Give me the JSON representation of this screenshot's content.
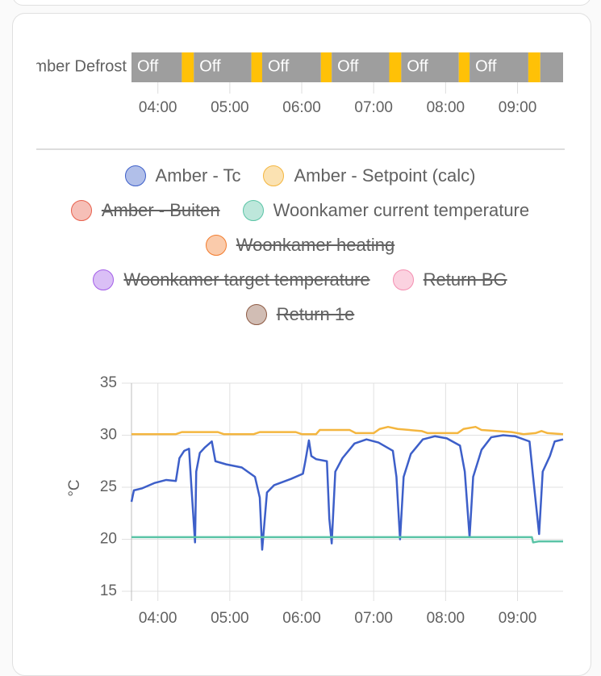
{
  "chart_data": [
    {
      "type": "timeline",
      "label": "Amber Defrost",
      "xlim": [
        218,
        578
      ],
      "xticks": [
        {
          "value": 240,
          "label": "04:00"
        },
        {
          "value": 300,
          "label": "05:00"
        },
        {
          "value": 360,
          "label": "06:00"
        },
        {
          "value": 420,
          "label": "07:00"
        },
        {
          "value": 480,
          "label": "08:00"
        },
        {
          "value": 540,
          "label": "09:00"
        }
      ],
      "segments": [
        {
          "start": 218,
          "end": 260,
          "state": "Off",
          "color": "#9e9e9e"
        },
        {
          "start": 260,
          "end": 270,
          "state": null,
          "color": "#ffc107"
        },
        {
          "start": 270,
          "end": 318,
          "state": "Off",
          "color": "#9e9e9e"
        },
        {
          "start": 318,
          "end": 327,
          "state": null,
          "color": "#ffc107"
        },
        {
          "start": 327,
          "end": 376,
          "state": "Off",
          "color": "#9e9e9e"
        },
        {
          "start": 376,
          "end": 385,
          "state": null,
          "color": "#ffc107"
        },
        {
          "start": 385,
          "end": 433,
          "state": "Off",
          "color": "#9e9e9e"
        },
        {
          "start": 433,
          "end": 443,
          "state": null,
          "color": "#ffc107"
        },
        {
          "start": 443,
          "end": 491,
          "state": "Off",
          "color": "#9e9e9e"
        },
        {
          "start": 491,
          "end": 500,
          "state": null,
          "color": "#ffc107"
        },
        {
          "start": 500,
          "end": 549,
          "state": "Off",
          "color": "#9e9e9e"
        },
        {
          "start": 549,
          "end": 559,
          "state": null,
          "color": "#ffc107"
        },
        {
          "start": 559,
          "end": 578,
          "state": null,
          "color": "#9e9e9e"
        }
      ]
    },
    {
      "type": "line",
      "y_label": "°C",
      "grid": true,
      "xlim": [
        218,
        578
      ],
      "xticks": [
        {
          "value": 240,
          "label": "04:00"
        },
        {
          "value": 300,
          "label": "05:00"
        },
        {
          "value": 360,
          "label": "06:00"
        },
        {
          "value": 420,
          "label": "07:00"
        },
        {
          "value": 480,
          "label": "08:00"
        },
        {
          "value": 540,
          "label": "09:00"
        }
      ],
      "ylim": [
        15,
        35
      ],
      "yticks": [
        15,
        20,
        25,
        30,
        35
      ],
      "series": [
        {
          "name": "Amber - Tc",
          "color": "#3d5fc9",
          "hidden": false,
          "x": [
            218,
            220,
            227,
            237,
            247,
            255,
            258,
            262,
            266,
            268,
            271,
            272,
            275,
            279,
            285,
            288,
            297,
            310,
            321,
            325,
            327,
            331,
            337,
            351,
            361,
            363,
            366,
            368,
            372,
            381,
            383,
            385,
            388,
            394,
            404,
            414,
            424,
            436,
            439,
            442,
            445,
            451,
            461,
            471,
            481,
            492,
            496,
            500,
            503,
            510,
            518,
            528,
            538,
            550,
            553,
            558,
            561,
            567,
            571,
            578
          ],
          "values": [
            23.6,
            24.7,
            24.9,
            25.4,
            25.7,
            25.6,
            27.8,
            28.5,
            28.7,
            25,
            19.7,
            26.5,
            28.3,
            28.8,
            29.4,
            27.5,
            27.2,
            26.9,
            26,
            24,
            19,
            24.5,
            25.2,
            25.8,
            26.3,
            27.5,
            29.5,
            28,
            27.7,
            27.5,
            22,
            19.6,
            26.5,
            27.8,
            29.2,
            29.6,
            29.3,
            28.5,
            26,
            20,
            26,
            28.2,
            29.6,
            29.9,
            29.7,
            29,
            26.5,
            20.2,
            26,
            28.6,
            29.8,
            30,
            29.9,
            29.4,
            26,
            20.5,
            26.5,
            28,
            29.4,
            29.6
          ]
        },
        {
          "name": "Amber - Setpoint (calc)",
          "color": "#f4b63f",
          "hidden": false,
          "x": [
            218,
            255,
            260,
            290,
            295,
            320,
            325,
            355,
            360,
            372,
            375,
            400,
            405,
            420,
            425,
            432,
            440,
            460,
            465,
            490,
            495,
            505,
            510,
            535,
            545,
            555,
            560,
            565,
            578
          ],
          "values": [
            30.1,
            30.1,
            30.3,
            30.3,
            30.1,
            30.1,
            30.3,
            30.3,
            30.1,
            30.1,
            30.5,
            30.5,
            30.2,
            30.2,
            30.6,
            30.8,
            30.6,
            30.4,
            30.2,
            30.2,
            30.6,
            30.8,
            30.5,
            30.3,
            30.1,
            30.2,
            30.4,
            30.2,
            30.1
          ]
        },
        {
          "name": "Amber - Buiten",
          "color": "#e8604c",
          "hidden": true
        },
        {
          "name": "Woonkamer current temperature",
          "color": "#5ac4a6",
          "hidden": false,
          "x": [
            218,
            552,
            553,
            558,
            578
          ],
          "values": [
            20.2,
            20.2,
            19.7,
            19.8,
            19.8
          ]
        },
        {
          "name": "Woonkamer heating",
          "color": "#f27c2e",
          "hidden": true
        },
        {
          "name": "Woonkamer target temperature",
          "color": "#a35ee8",
          "hidden": true
        },
        {
          "name": "Return BG",
          "color": "#f48fb1",
          "hidden": true
        },
        {
          "name": "Return 1e",
          "color": "#8d5a43",
          "hidden": true
        }
      ]
    }
  ]
}
